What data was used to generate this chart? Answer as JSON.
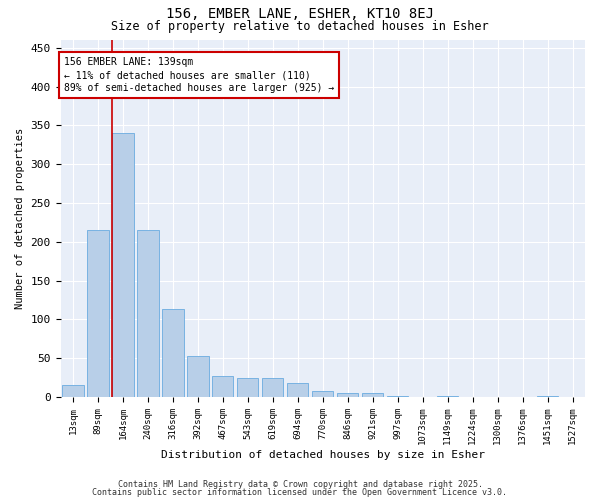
{
  "title_line1": "156, EMBER LANE, ESHER, KT10 8EJ",
  "title_line2": "Size of property relative to detached houses in Esher",
  "xlabel": "Distribution of detached houses by size in Esher",
  "ylabel": "Number of detached properties",
  "categories": [
    "13sqm",
    "89sqm",
    "164sqm",
    "240sqm",
    "316sqm",
    "392sqm",
    "467sqm",
    "543sqm",
    "619sqm",
    "694sqm",
    "770sqm",
    "846sqm",
    "921sqm",
    "997sqm",
    "1073sqm",
    "1149sqm",
    "1224sqm",
    "1300sqm",
    "1376sqm",
    "1451sqm",
    "1527sqm"
  ],
  "values": [
    15,
    215,
    340,
    215,
    113,
    53,
    27,
    25,
    25,
    18,
    8,
    5,
    5,
    2,
    0,
    1,
    0,
    0,
    0,
    1,
    0
  ],
  "bar_color": "#b8cfe8",
  "bar_edge_color": "#6aabe0",
  "highlight_index": 2,
  "highlight_color": "#cc0000",
  "annotation_text": "156 EMBER LANE: 139sqm\n← 11% of detached houses are smaller (110)\n89% of semi-detached houses are larger (925) →",
  "annotation_box_color": "#cc0000",
  "ylim": [
    0,
    460
  ],
  "yticks": [
    0,
    50,
    100,
    150,
    200,
    250,
    300,
    350,
    400,
    450
  ],
  "background_color": "#e8eef8",
  "grid_color": "#ffffff",
  "footer_line1": "Contains HM Land Registry data © Crown copyright and database right 2025.",
  "footer_line2": "Contains public sector information licensed under the Open Government Licence v3.0."
}
